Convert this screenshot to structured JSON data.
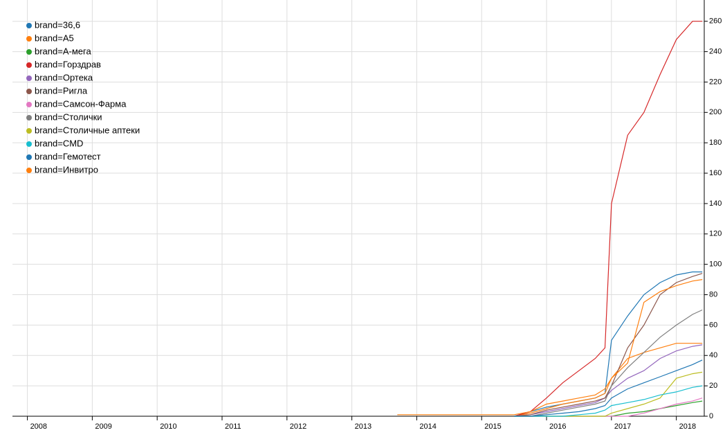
{
  "chart_data": {
    "type": "line",
    "x": [
      2013.7,
      2014,
      2014.5,
      2015,
      2015.5,
      2015.75,
      2016,
      2016.25,
      2016.5,
      2016.75,
      2016.9,
      2017.0,
      2017.25,
      2017.5,
      2017.75,
      2018,
      2018.25,
      2018.4
    ],
    "xlim": [
      2007.77,
      2018.43
    ],
    "xticks": [
      2008,
      2009,
      2010,
      2011,
      2012,
      2013,
      2014,
      2015,
      2016,
      2017,
      2018
    ],
    "ylim": [
      0,
      274
    ],
    "yticks": [
      0,
      20,
      40,
      60,
      80,
      100,
      120,
      140,
      160,
      180,
      200,
      220,
      240,
      260
    ],
    "grid": true,
    "legend": "top-left",
    "series": [
      {
        "name": "brand=36,6",
        "color": "#1f77b4",
        "values": [
          null,
          null,
          null,
          null,
          0,
          3,
          6,
          8,
          10,
          12,
          15,
          50,
          66,
          80,
          88,
          93,
          95,
          95
        ]
      },
      {
        "name": "brand=A5",
        "color": "#ff7f0e",
        "values": [
          null,
          null,
          null,
          null,
          0,
          2,
          5,
          8,
          10,
          12,
          15,
          25,
          38,
          42,
          45,
          48,
          48,
          48
        ]
      },
      {
        "name": "brand=А-мега",
        "color": "#2ca02c",
        "values": [
          null,
          null,
          null,
          null,
          0,
          0,
          0,
          0,
          0,
          0,
          0,
          0,
          2,
          3,
          5,
          7,
          9,
          10
        ]
      },
      {
        "name": "brand=Горздрав",
        "color": "#d62728",
        "values": [
          null,
          null,
          null,
          null,
          0,
          3,
          12,
          22,
          30,
          38,
          45,
          140,
          185,
          200,
          225,
          248,
          260,
          260
        ]
      },
      {
        "name": "brand=Ортека",
        "color": "#9467bd",
        "values": [
          null,
          null,
          null,
          null,
          0,
          1,
          3,
          5,
          7,
          9,
          12,
          17,
          25,
          30,
          38,
          43,
          46,
          47
        ]
      },
      {
        "name": "brand=Ригла",
        "color": "#8c564b",
        "values": [
          null,
          null,
          null,
          null,
          0,
          1,
          4,
          6,
          8,
          10,
          12,
          20,
          45,
          60,
          80,
          88,
          92,
          94
        ]
      },
      {
        "name": "brand=Самсон-Фарма",
        "color": "#e377c2",
        "values": [
          null,
          null,
          null,
          null,
          0,
          0,
          0,
          0,
          0,
          0,
          0,
          0,
          0,
          2,
          5,
          8,
          10,
          12
        ]
      },
      {
        "name": "brand=Столички",
        "color": "#7f7f7f",
        "values": [
          null,
          null,
          null,
          null,
          0,
          0,
          2,
          4,
          6,
          8,
          10,
          20,
          32,
          42,
          52,
          60,
          67,
          70
        ]
      },
      {
        "name": "brand=Столичные аптеки",
        "color": "#bcbd22",
        "values": [
          null,
          null,
          null,
          null,
          0,
          0,
          0,
          0,
          0,
          0,
          0,
          2,
          5,
          8,
          12,
          25,
          28,
          29
        ]
      },
      {
        "name": "brand=CMD",
        "color": "#17becf",
        "values": [
          null,
          null,
          null,
          null,
          0,
          0,
          0,
          0,
          1,
          2,
          4,
          7,
          9,
          11,
          14,
          16,
          19,
          20
        ]
      },
      {
        "name": "brand=Гемотест",
        "color": "#1f77b4",
        "values": [
          null,
          null,
          null,
          null,
          0,
          0,
          1,
          2,
          3,
          5,
          7,
          12,
          18,
          22,
          26,
          30,
          34,
          37
        ]
      },
      {
        "name": "brand=Инвитро",
        "color": "#ff7f0e",
        "values": [
          1,
          1,
          1,
          1,
          1,
          3,
          8,
          10,
          12,
          14,
          18,
          25,
          35,
          75,
          82,
          86,
          89,
          90
        ]
      }
    ]
  }
}
